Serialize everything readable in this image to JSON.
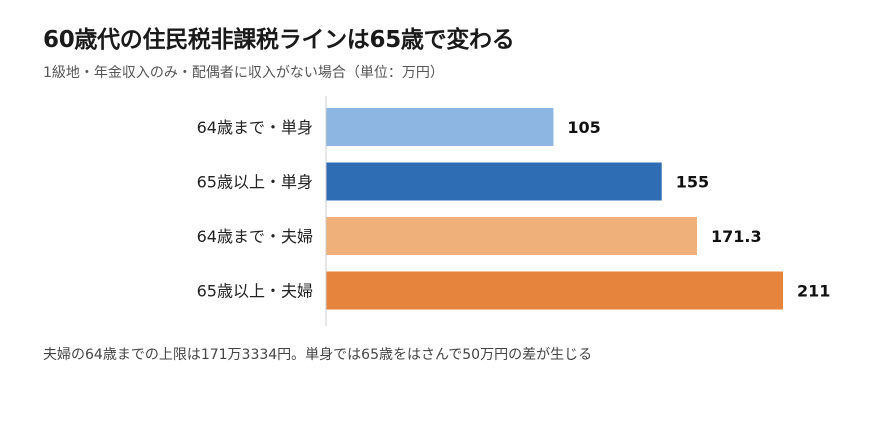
{
  "title": "60歳代の住民税非課税ラインは65歳で変わる",
  "subtitle": "1級地・年金収入のみ・配偶者に収入がない場合（単位：万円）",
  "note": "夫婦の64歳までの上限は171万3334円。単身では65歳をはさんで50万円の差が生じる",
  "chart_data": {
    "type": "bar",
    "orientation": "horizontal",
    "categories": [
      "64歳まで・単身",
      "65歳以上・単身",
      "64歳まで・夫婦",
      "65歳以上・夫婦"
    ],
    "values": [
      105,
      155,
      171.3,
      211
    ],
    "value_labels": [
      "105",
      "155",
      "171.3",
      "211"
    ],
    "colors": [
      "#8db6e2",
      "#2e6db4",
      "#f0b07a",
      "#e6843e"
    ],
    "xlim": [
      0,
      211
    ],
    "axis_line_color": "#cccccc",
    "grid": false,
    "legend": "none"
  }
}
